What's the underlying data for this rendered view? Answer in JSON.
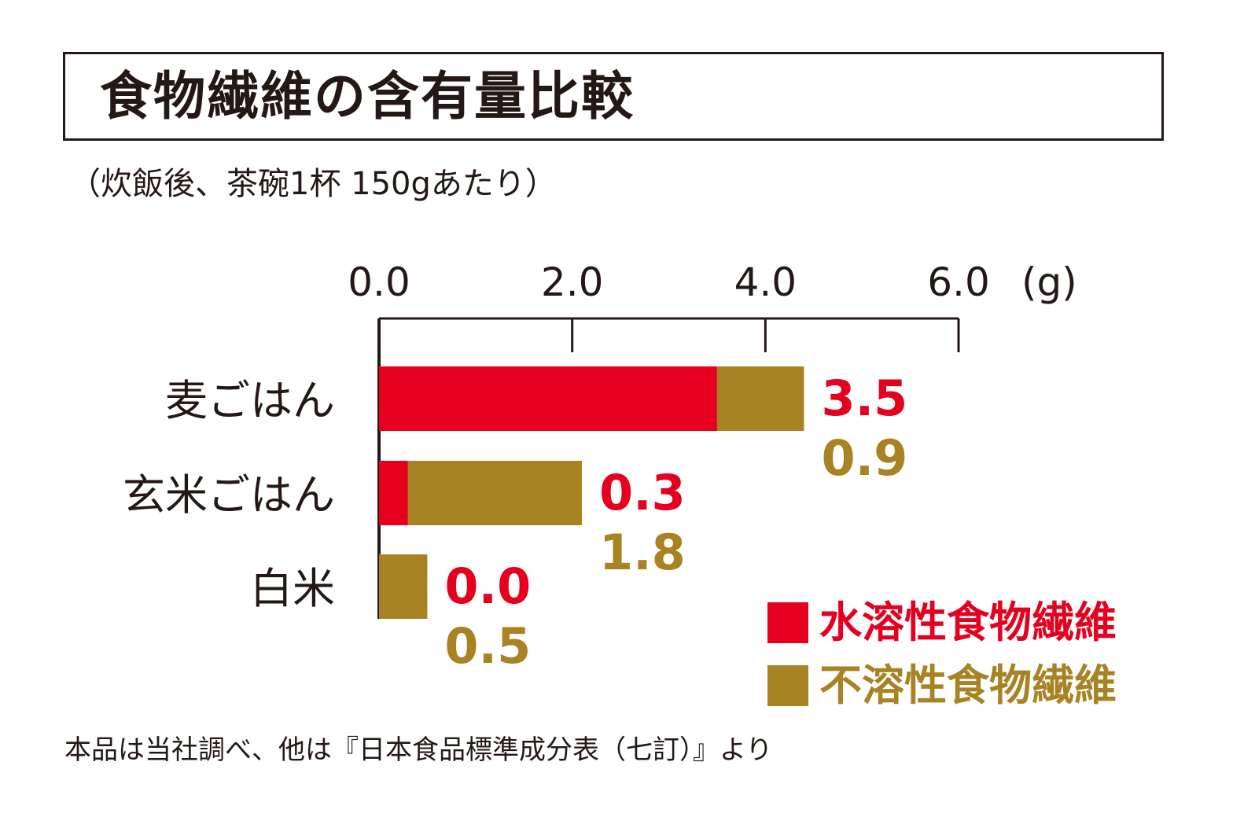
{
  "colors": {
    "soluble": "#e50020",
    "insoluble": "#a88324",
    "text": "#231815"
  },
  "chart_data": {
    "type": "bar",
    "orientation": "horizontal",
    "stacked": true,
    "title": "食物繊維の含有量比較",
    "subtitle": "（炊飯後、茶碗1杯 150gあたり）",
    "xlabel": "(g)",
    "xlim": [
      0,
      6.0
    ],
    "xticks": [
      "0.0",
      "2.0",
      "4.0",
      "6.0"
    ],
    "xtick_values": [
      0,
      2,
      4,
      6
    ],
    "categories": [
      "麦ごはん",
      "玄米ごはん",
      "白米"
    ],
    "series": [
      {
        "name": "水溶性食物繊維",
        "values": [
          3.5,
          0.3,
          0.0
        ],
        "labels": [
          "3.5",
          "0.3",
          "0.0"
        ]
      },
      {
        "name": "不溶性食物繊維",
        "values": [
          0.9,
          1.8,
          0.5
        ],
        "labels": [
          "0.9",
          "1.8",
          "0.5"
        ]
      }
    ],
    "legend_position": "bottom-right",
    "grid": false
  },
  "footnote": "本品は当社調べ、他は『日本食品標準成分表（七訂）』より"
}
